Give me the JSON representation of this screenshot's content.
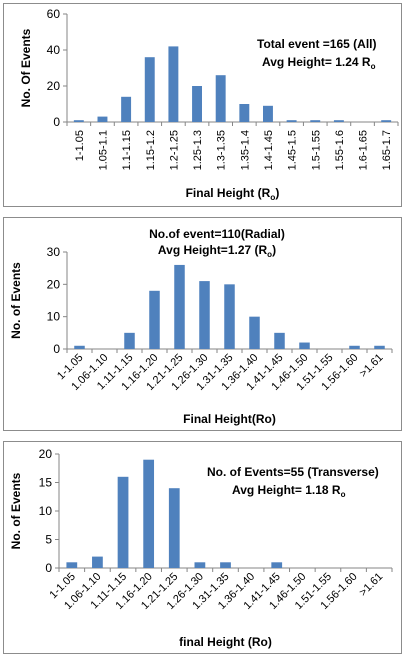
{
  "colors": {
    "bar": "#4f81bd",
    "axis": "#868686",
    "text": "#000000"
  },
  "chart_data": [
    {
      "type": "bar",
      "annotation_lines": [
        "Total event =165 (All)",
        "Avg Height= 1.24 R"
      ],
      "annotation_subscript": "o",
      "xlabel": "Final Height (R",
      "xlabel_subscript": "o",
      "xlabel_suffix": ")",
      "ylabel": "No. Of Events",
      "ylim": [
        0,
        60
      ],
      "yticks": [
        0,
        20,
        40,
        60
      ],
      "categories": [
        "1-1.05",
        "1.05-1.1",
        "1.1-1.15",
        "1.15-1.2",
        "1.2-1.25",
        "1.25-1.3",
        "1.3-1.35",
        "1.35-1.4",
        "1.4-1.45",
        "1.45-1.5",
        "1.5-1.55",
        "1.55-1.6",
        "1.6-1.65",
        "1.65-1.7"
      ],
      "values": [
        1,
        3,
        14,
        36,
        42,
        20,
        26,
        10,
        9,
        1,
        1,
        1,
        0,
        1
      ]
    },
    {
      "type": "bar",
      "title_lines": [
        "No.of event=110(Radial)",
        "Avg Height=1.27 (R"
      ],
      "title_subscript": "o",
      "title_suffix": ")",
      "xlabel": "Final Height(Ro)",
      "ylabel": "No. of Events",
      "ylim": [
        0,
        30
      ],
      "yticks": [
        0,
        10,
        20,
        30
      ],
      "categories": [
        "1-1.05",
        "1.06-1.10",
        "1.11-1.15",
        "1.16-1.20",
        "1.21-1.25",
        "1.26-1.30",
        "1.31-1.35",
        "1.36-1.40",
        "1.41-1.45",
        "1.46-1.50",
        "1.51-1.55",
        "1.56-1.60",
        ">1.61"
      ],
      "values": [
        1,
        0,
        5,
        18,
        26,
        21,
        20,
        10,
        5,
        2,
        0,
        1,
        1
      ]
    },
    {
      "type": "bar",
      "annotation_lines": [
        "No. of Events=55 (Transverse)",
        "Avg Height= 1.18 R"
      ],
      "annotation_subscript": "o",
      "xlabel": "final Height (Ro)",
      "ylabel": "No. of Events",
      "ylim": [
        0,
        20
      ],
      "yticks": [
        0,
        5,
        10,
        15,
        20
      ],
      "categories": [
        "1-1.05",
        "1.06-1.10",
        "1.11-1.15",
        "1.16-1.20",
        "1.21-1.25",
        "1.26-1.30",
        "1.31-1.35",
        "1.36-1.40",
        "1.41-1.45",
        "1.46-1.50",
        "1.51-1.55",
        "1.56-1.60",
        ">1.61"
      ],
      "values": [
        1,
        2,
        16,
        19,
        14,
        1,
        1,
        0,
        1,
        0,
        0,
        0,
        0
      ]
    }
  ]
}
